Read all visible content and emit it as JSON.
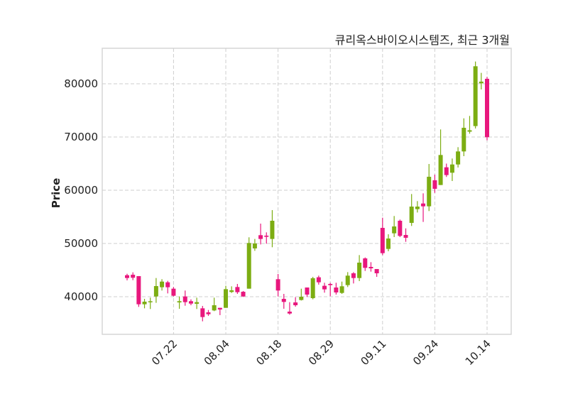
{
  "chart_data": {
    "type": "candlestick",
    "title": "큐리옥스바이오시스템즈, 최근 3개월",
    "xlabel": "",
    "ylabel": "Price",
    "ylim": [
      32933,
      86667
    ],
    "grid": true,
    "up_color": "#7cad12",
    "down_color": "#e8177d",
    "y_ticks": [
      40000,
      50000,
      60000,
      70000,
      80000
    ],
    "y_tick_labels": [
      "40000",
      "50000",
      "60000",
      "70000",
      "80000"
    ],
    "x_ticks": [
      {
        "index": 8,
        "label": "07.22"
      },
      {
        "index": 17,
        "label": "08.04"
      },
      {
        "index": 26,
        "label": "08.18"
      },
      {
        "index": 35,
        "label": "08.29"
      },
      {
        "index": 44,
        "label": "09.11"
      },
      {
        "index": 53,
        "label": "09.24"
      },
      {
        "index": 62,
        "label": "10.14"
      }
    ],
    "ohlc_fields": [
      "open",
      "high",
      "low",
      "close"
    ],
    "ohlc": [
      [
        44040,
        44310,
        43070,
        43510
      ],
      [
        44130,
        44580,
        43110,
        43560
      ],
      [
        43870,
        43870,
        38090,
        38580
      ],
      [
        38580,
        39600,
        37820,
        39070
      ],
      [
        39020,
        39820,
        37690,
        39150
      ],
      [
        40050,
        43510,
        38850,
        42000
      ],
      [
        41780,
        43290,
        41160,
        42840
      ],
      [
        42710,
        42980,
        40620,
        41780
      ],
      [
        41510,
        41820,
        40050,
        40180
      ],
      [
        38930,
        40050,
        37730,
        39160
      ],
      [
        40050,
        41160,
        38310,
        38980
      ],
      [
        39160,
        39510,
        38400,
        38710
      ],
      [
        38670,
        39820,
        37690,
        38980
      ],
      [
        37820,
        38270,
        35380,
        36180
      ],
      [
        37070,
        37510,
        36400,
        36710
      ],
      [
        37420,
        39820,
        37290,
        38400
      ],
      [
        37910,
        37910,
        36540,
        37600
      ],
      [
        37910,
        42050,
        37910,
        41420
      ],
      [
        40890,
        41950,
        40710,
        41200
      ],
      [
        41820,
        42400,
        40530,
        40850
      ],
      [
        40930,
        41070,
        39960,
        40050
      ],
      [
        41510,
        51160,
        41510,
        50090
      ],
      [
        49070,
        50850,
        48620,
        50000
      ],
      [
        51560,
        53730,
        49820,
        50850
      ],
      [
        51470,
        52090,
        49960,
        51250
      ],
      [
        50850,
        56270,
        49290,
        54270
      ],
      [
        43290,
        44270,
        40050,
        41160
      ],
      [
        39600,
        40530,
        37740,
        39020
      ],
      [
        37200,
        38980,
        36620,
        36840
      ],
      [
        38930,
        39910,
        38130,
        38400
      ],
      [
        39380,
        41510,
        39290,
        40000
      ],
      [
        41730,
        41730,
        39960,
        40400
      ],
      [
        39730,
        43730,
        39510,
        43470
      ],
      [
        43650,
        43960,
        42270,
        42710
      ],
      [
        42050,
        42620,
        40760,
        41380
      ],
      [
        42400,
        42620,
        40090,
        42180
      ],
      [
        41730,
        42620,
        40400,
        40800
      ],
      [
        40710,
        42840,
        40530,
        41960
      ],
      [
        42180,
        44620,
        41820,
        43960
      ],
      [
        44400,
        44620,
        42490,
        43510
      ],
      [
        43510,
        47820,
        42930,
        46400
      ],
      [
        47200,
        47380,
        44840,
        45420
      ],
      [
        45600,
        46490,
        44710,
        45330
      ],
      [
        45200,
        45200,
        43730,
        44400
      ],
      [
        52930,
        54840,
        47820,
        48180
      ],
      [
        48980,
        51730,
        48540,
        50930
      ],
      [
        51910,
        55160,
        51200,
        53200
      ],
      [
        54270,
        54490,
        51200,
        51420
      ],
      [
        51600,
        52840,
        50310,
        51070
      ],
      [
        53870,
        59290,
        53290,
        56930
      ],
      [
        56450,
        57960,
        55820,
        56930
      ],
      [
        57510,
        59420,
        54050,
        56980
      ],
      [
        56980,
        64930,
        56090,
        62530
      ],
      [
        61870,
        62930,
        59510,
        60270
      ],
      [
        60980,
        71420,
        60980,
        66620
      ],
      [
        64310,
        65000,
        62500,
        62850
      ],
      [
        63290,
        65960,
        61730,
        64840
      ],
      [
        64840,
        68090,
        64270,
        67290
      ],
      [
        67290,
        73510,
        66400,
        71730
      ],
      [
        71000,
        73960,
        70620,
        71270
      ],
      [
        72050,
        84180,
        71600,
        83290
      ],
      [
        80090,
        82050,
        78930,
        80400
      ],
      [
        80930,
        81290,
        69380,
        69960
      ]
    ]
  }
}
